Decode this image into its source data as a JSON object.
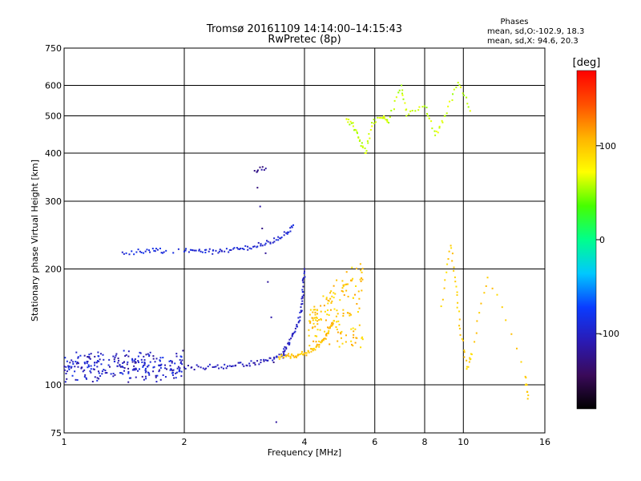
{
  "header": {
    "title_line1": "Tromsø 20161109 14:14:00–14:15:43",
    "title_line2": "RwPretec (8p)"
  },
  "phases": {
    "heading": "Phases",
    "line_o": "mean, sd,O:-102.9, 18.3",
    "line_x": "mean, sd,X: 94.6, 20.3"
  },
  "chart_data": {
    "type": "scatter",
    "xlabel": "Frequency [MHz]",
    "ylabel": "Stationary phase Virtual Height [km]",
    "xscale": "log",
    "yscale": "log",
    "xlim": [
      1,
      16
    ],
    "ylim": [
      75,
      750
    ],
    "xticks": [
      1,
      2,
      4,
      6,
      8,
      10,
      16
    ],
    "yticks": [
      75,
      100,
      200,
      300,
      400,
      500,
      600,
      750
    ],
    "grid": true,
    "colorbar": {
      "label": "[deg]",
      "range": [
        -180,
        180
      ],
      "ticks": [
        100,
        0,
        -100
      ],
      "colors": [
        "#000000",
        "#3a0a5a",
        "#2a1ab4",
        "#0a3cff",
        "#00c8ff",
        "#00ff8c",
        "#46ff00",
        "#ffff00",
        "#ffb400",
        "#ff5000",
        "#ff0000"
      ]
    },
    "series": [
      {
        "trace": "O-mode low-frequency band",
        "phase": -100,
        "x_range": [
          1.0,
          2.0
        ],
        "y_center": 112,
        "y_spread": 12,
        "count": 260
      },
      {
        "trace": "O-mode E-region flat",
        "phase": -105,
        "points": [
          [
            2.0,
            111
          ],
          [
            2.2,
            111
          ],
          [
            2.4,
            111.5
          ],
          [
            2.6,
            112
          ],
          [
            2.8,
            113
          ],
          [
            3.0,
            114
          ],
          [
            3.2,
            116
          ],
          [
            3.4,
            118
          ],
          [
            3.6,
            119
          ]
        ]
      },
      {
        "trace": "O-mode F-layer rise",
        "phase": -100,
        "points": [
          [
            3.5,
            120
          ],
          [
            3.6,
            125
          ],
          [
            3.7,
            132
          ],
          [
            3.8,
            140
          ],
          [
            3.9,
            150
          ],
          [
            3.95,
            165
          ],
          [
            3.97,
            180
          ],
          [
            4.0,
            200
          ]
        ]
      },
      {
        "trace": "O-mode upper trace",
        "phase": -95,
        "points": [
          [
            2.0,
            222
          ],
          [
            2.2,
            222
          ],
          [
            2.4,
            223
          ],
          [
            2.6,
            224
          ],
          [
            2.8,
            226
          ],
          [
            3.0,
            229
          ],
          [
            3.2,
            233
          ],
          [
            3.4,
            238
          ],
          [
            3.6,
            248
          ],
          [
            3.75,
            260
          ]
        ]
      },
      {
        "trace": "O-mode isolated low-freq points",
        "phase": -90,
        "points": [
          [
            1.4,
            221
          ],
          [
            1.55,
            222
          ],
          [
            1.68,
            223
          ],
          [
            1.8,
            223
          ],
          [
            2.45,
            222
          ]
        ]
      },
      {
        "trace": "X-mode E-region",
        "phase": 100,
        "points": [
          [
            3.45,
            118
          ],
          [
            3.6,
            118.5
          ],
          [
            3.75,
            119
          ],
          [
            3.9,
            120
          ],
          [
            4.05,
            121
          ],
          [
            4.2,
            124
          ],
          [
            4.35,
            127
          ],
          [
            4.5,
            132
          ],
          [
            4.6,
            138
          ],
          [
            4.7,
            145
          ]
        ]
      },
      {
        "trace": "X-mode F-layer cluster",
        "phase": 100,
        "x_range": [
          4.1,
          5.6
        ],
        "y_range": [
          125,
          210
        ],
        "count": 160
      },
      {
        "trace": "High-altitude echoes",
        "phase": 60,
        "points": [
          [
            5.1,
            490
          ],
          [
            5.3,
            470
          ],
          [
            5.5,
            430
          ],
          [
            5.7,
            400
          ],
          [
            5.9,
            480
          ],
          [
            6.3,
            495
          ],
          [
            6.5,
            480
          ],
          [
            7.0,
            600
          ],
          [
            7.2,
            500
          ],
          [
            8.0,
            530
          ],
          [
            8.5,
            445
          ],
          [
            9.0,
            500
          ],
          [
            9.7,
            610
          ],
          [
            10.4,
            515
          ]
        ]
      },
      {
        "trace": "Scattered high-frequency points",
        "phase": 95,
        "points": [
          [
            8.8,
            160
          ],
          [
            9.3,
            230
          ],
          [
            9.6,
            180
          ],
          [
            9.8,
            140
          ],
          [
            10.2,
            110
          ],
          [
            10.5,
            120
          ],
          [
            11.5,
            190
          ],
          [
            14.3,
            105
          ],
          [
            14.5,
            92
          ]
        ]
      },
      {
        "trace": "Low outliers",
        "phase": -120,
        "points": [
          [
            3.4,
            80
          ],
          [
            3.0,
            360
          ],
          [
            3.2,
            365
          ]
        ]
      }
    ]
  }
}
